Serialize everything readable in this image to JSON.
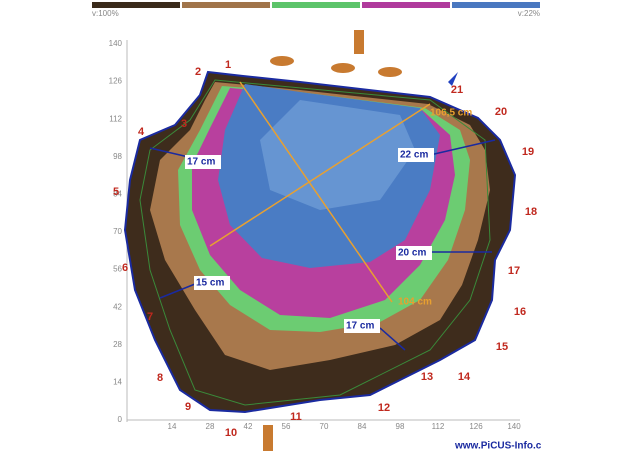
{
  "scale": {
    "left_label": "v:100%",
    "right_label": "v:22%"
  },
  "y_axis_ticks": [
    "140",
    "126",
    "112",
    "98",
    "84",
    "70",
    "56",
    "42",
    "28",
    "14",
    "0"
  ],
  "x_axis_ticks": [
    "14",
    "28",
    "42",
    "56",
    "70",
    "84",
    "98",
    "112",
    "126",
    "140"
  ],
  "points": [
    "1",
    "2",
    "3",
    "4",
    "5",
    "6",
    "7",
    "8",
    "9",
    "10",
    "11",
    "12",
    "13",
    "14",
    "15",
    "16",
    "17",
    "18",
    "19",
    "20",
    "21"
  ],
  "measurements": [
    "17 cm",
    "22 cm",
    "20 cm",
    "15 cm",
    "17 cm",
    "106,5 cm",
    "104 cm"
  ],
  "footer": "www.PiCUS-Info.c"
}
